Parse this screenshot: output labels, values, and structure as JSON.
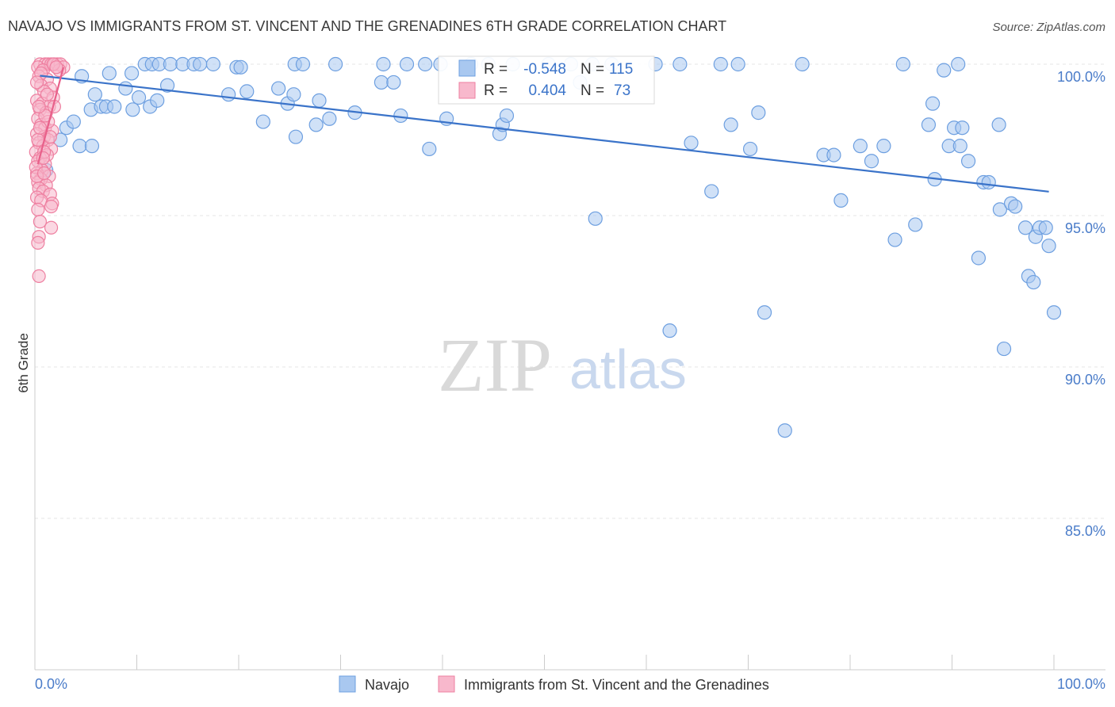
{
  "chart_data": {
    "type": "scatter",
    "title": "NAVAJO VS IMMIGRANTS FROM ST. VINCENT AND THE GRENADINES 6TH GRADE CORRELATION CHART",
    "source": "Source: ZipAtlas.com",
    "xlabel": "",
    "ylabel": "6th Grade",
    "xlim": [
      0,
      100
    ],
    "ylim": [
      80.5,
      101.0
    ],
    "x_tick_labels": [
      "0.0%",
      "100.0%"
    ],
    "y_ticks": [
      100,
      95,
      90,
      85
    ],
    "y_tick_labels": [
      "100.0%",
      "95.0%",
      "90.0%",
      "85.0%"
    ],
    "grid": true,
    "watermark": {
      "zip": "ZIP",
      "atlas": "atlas"
    },
    "stats_box": {
      "rows": [
        {
          "r_label": "R =",
          "r_value": "-0.548",
          "n_label": "N =",
          "n_value": "115",
          "color": "#a9c8f0"
        },
        {
          "r_label": "R =",
          "r_value": "0.404",
          "n_label": "N =",
          "n_value": "73",
          "color": "#f8b8cc"
        }
      ]
    },
    "legend": {
      "position": "bottom",
      "entries": [
        "Navajo",
        "Immigrants from St. Vincent and the Grenadines"
      ]
    },
    "colors": {
      "navajo_fill": "#a9c8f0",
      "navajo_stroke": "#6d9fe0",
      "navajo_line": "#3a73c9",
      "svg_fill": "#f8b8cc",
      "svg_stroke": "#ee7fa0",
      "svg_line": "#e8608a"
    },
    "series": [
      {
        "name": "Navajo",
        "trend": {
          "x": [
            0.5,
            99.5
          ],
          "y": [
            99.62,
            95.79
          ]
        },
        "points": [
          [
            4.6,
            99.6
          ],
          [
            7.3,
            99.7
          ],
          [
            9.5,
            99.7
          ],
          [
            10.8,
            100
          ],
          [
            11.5,
            100
          ],
          [
            12.2,
            100
          ],
          [
            13.3,
            100
          ],
          [
            14.5,
            100
          ],
          [
            15.6,
            100
          ],
          [
            16.2,
            100
          ],
          [
            17.5,
            100
          ],
          [
            19.8,
            99.9
          ],
          [
            20.2,
            99.9
          ],
          [
            25.5,
            100
          ],
          [
            26.3,
            100
          ],
          [
            29.5,
            100
          ],
          [
            34.2,
            100
          ],
          [
            36.5,
            100
          ],
          [
            38.3,
            100
          ],
          [
            39.8,
            100
          ],
          [
            42.8,
            100
          ],
          [
            44.5,
            100
          ],
          [
            46.9,
            100
          ],
          [
            54.7,
            100
          ],
          [
            56.6,
            100
          ],
          [
            60.9,
            100
          ],
          [
            63.3,
            100
          ],
          [
            67.3,
            100
          ],
          [
            69.0,
            100
          ],
          [
            75.3,
            100
          ],
          [
            85.2,
            100
          ],
          [
            90.6,
            100
          ],
          [
            3.1,
            97.9
          ],
          [
            3.8,
            98.1
          ],
          [
            2.5,
            97.5
          ],
          [
            4.4,
            97.3
          ],
          [
            5.6,
            97.3
          ],
          [
            1.1,
            96.5
          ],
          [
            5.5,
            98.5
          ],
          [
            5.9,
            99.0
          ],
          [
            6.5,
            98.6
          ],
          [
            7.0,
            98.6
          ],
          [
            7.8,
            98.6
          ],
          [
            8.9,
            99.2
          ],
          [
            9.6,
            98.5
          ],
          [
            10.2,
            98.9
          ],
          [
            11.3,
            98.6
          ],
          [
            12.0,
            98.8
          ],
          [
            13.0,
            99.3
          ],
          [
            19.0,
            99.0
          ],
          [
            20.8,
            99.1
          ],
          [
            22.4,
            98.1
          ],
          [
            23.9,
            99.2
          ],
          [
            24.8,
            98.7
          ],
          [
            25.4,
            99.0
          ],
          [
            25.6,
            97.6
          ],
          [
            27.6,
            98.0
          ],
          [
            27.9,
            98.8
          ],
          [
            28.9,
            98.2
          ],
          [
            31.4,
            98.4
          ],
          [
            34.0,
            99.4
          ],
          [
            35.2,
            99.4
          ],
          [
            35.9,
            98.3
          ],
          [
            38.7,
            97.2
          ],
          [
            40.4,
            98.2
          ],
          [
            45.6,
            97.7
          ],
          [
            45.9,
            98.0
          ],
          [
            46.3,
            98.3
          ],
          [
            50.4,
            100
          ],
          [
            52.6,
            100
          ],
          [
            53.5,
            99.4
          ],
          [
            55.0,
            94.9
          ],
          [
            62.3,
            91.2
          ],
          [
            64.4,
            97.4
          ],
          [
            66.4,
            95.8
          ],
          [
            68.3,
            98.0
          ],
          [
            70.2,
            97.2
          ],
          [
            71.0,
            98.4
          ],
          [
            71.6,
            91.8
          ],
          [
            73.6,
            87.9
          ],
          [
            77.4,
            97.0
          ],
          [
            78.4,
            97.0
          ],
          [
            79.1,
            95.5
          ],
          [
            81.0,
            97.3
          ],
          [
            82.1,
            96.8
          ],
          [
            83.3,
            97.3
          ],
          [
            84.4,
            94.2
          ],
          [
            86.4,
            94.7
          ],
          [
            87.7,
            98.0
          ],
          [
            88.1,
            98.7
          ],
          [
            88.3,
            96.2
          ],
          [
            89.2,
            99.8
          ],
          [
            89.7,
            97.3
          ],
          [
            90.2,
            97.9
          ],
          [
            90.8,
            97.3
          ],
          [
            91.0,
            97.9
          ],
          [
            91.6,
            96.8
          ],
          [
            92.6,
            93.6
          ],
          [
            93.1,
            96.1
          ],
          [
            93.6,
            96.1
          ],
          [
            94.6,
            98.0
          ],
          [
            94.7,
            95.2
          ],
          [
            95.1,
            90.6
          ],
          [
            95.8,
            95.4
          ],
          [
            96.2,
            95.3
          ],
          [
            97.2,
            94.6
          ],
          [
            97.5,
            93.0
          ],
          [
            98.0,
            92.8
          ],
          [
            98.2,
            94.3
          ],
          [
            98.6,
            94.6
          ],
          [
            99.2,
            94.6
          ],
          [
            99.5,
            94.0
          ],
          [
            100.0,
            91.8
          ]
        ]
      },
      {
        "name": "Immigrants from St. Vincent and the Grenadines",
        "trend": {
          "x": [
            0.3,
            2.8
          ],
          "y": [
            96.7,
            99.9
          ]
        },
        "points": [
          [
            0.5,
            100
          ],
          [
            1.0,
            100
          ],
          [
            1.3,
            100
          ],
          [
            1.6,
            100
          ],
          [
            1.9,
            100
          ],
          [
            2.2,
            100
          ],
          [
            2.5,
            100
          ],
          [
            2.8,
            99.9
          ],
          [
            0.3,
            99.9
          ],
          [
            0.8,
            99.8
          ],
          [
            0.4,
            99.6
          ],
          [
            1.2,
            99.5
          ],
          [
            0.6,
            99.3
          ],
          [
            1.5,
            99.2
          ],
          [
            0.9,
            99.1
          ],
          [
            1.8,
            98.9
          ],
          [
            0.2,
            98.8
          ],
          [
            0.7,
            98.7
          ],
          [
            1.4,
            98.6
          ],
          [
            0.5,
            98.5
          ],
          [
            1.1,
            98.4
          ],
          [
            0.3,
            98.2
          ],
          [
            0.6,
            98.0
          ],
          [
            1.0,
            97.9
          ],
          [
            1.7,
            97.8
          ],
          [
            0.2,
            97.7
          ],
          [
            0.9,
            97.6
          ],
          [
            1.3,
            97.5
          ],
          [
            0.4,
            97.4
          ],
          [
            0.8,
            97.3
          ],
          [
            1.6,
            97.2
          ],
          [
            0.1,
            97.1
          ],
          [
            1.2,
            97.0
          ],
          [
            0.5,
            96.9
          ],
          [
            0.3,
            96.8
          ],
          [
            1.0,
            96.7
          ],
          [
            0.7,
            96.5
          ],
          [
            0.2,
            96.4
          ],
          [
            1.4,
            96.3
          ],
          [
            0.6,
            96.2
          ],
          [
            0.3,
            96.1
          ],
          [
            1.1,
            96.0
          ],
          [
            0.4,
            95.9
          ],
          [
            0.8,
            95.8
          ],
          [
            1.5,
            95.7
          ],
          [
            0.2,
            95.6
          ],
          [
            0.6,
            95.5
          ],
          [
            1.7,
            95.4
          ],
          [
            1.6,
            95.3
          ],
          [
            0.3,
            95.2
          ],
          [
            0.5,
            94.8
          ],
          [
            1.6,
            94.6
          ],
          [
            0.4,
            94.3
          ],
          [
            0.3,
            94.1
          ],
          [
            0.4,
            93.0
          ],
          [
            0.1,
            96.6
          ],
          [
            0.2,
            96.3
          ],
          [
            0.9,
            97.1
          ],
          [
            1.3,
            98.1
          ],
          [
            1.9,
            98.6
          ],
          [
            2.4,
            99.8
          ],
          [
            0.6,
            99.7
          ],
          [
            1.0,
            98.3
          ],
          [
            0.3,
            97.5
          ],
          [
            0.8,
            96.9
          ],
          [
            1.2,
            99.0
          ],
          [
            0.5,
            97.9
          ],
          [
            1.8,
            100
          ],
          [
            0.2,
            99.4
          ],
          [
            0.9,
            96.4
          ],
          [
            1.5,
            97.6
          ],
          [
            0.4,
            98.6
          ],
          [
            2.1,
            99.9
          ]
        ]
      }
    ]
  }
}
